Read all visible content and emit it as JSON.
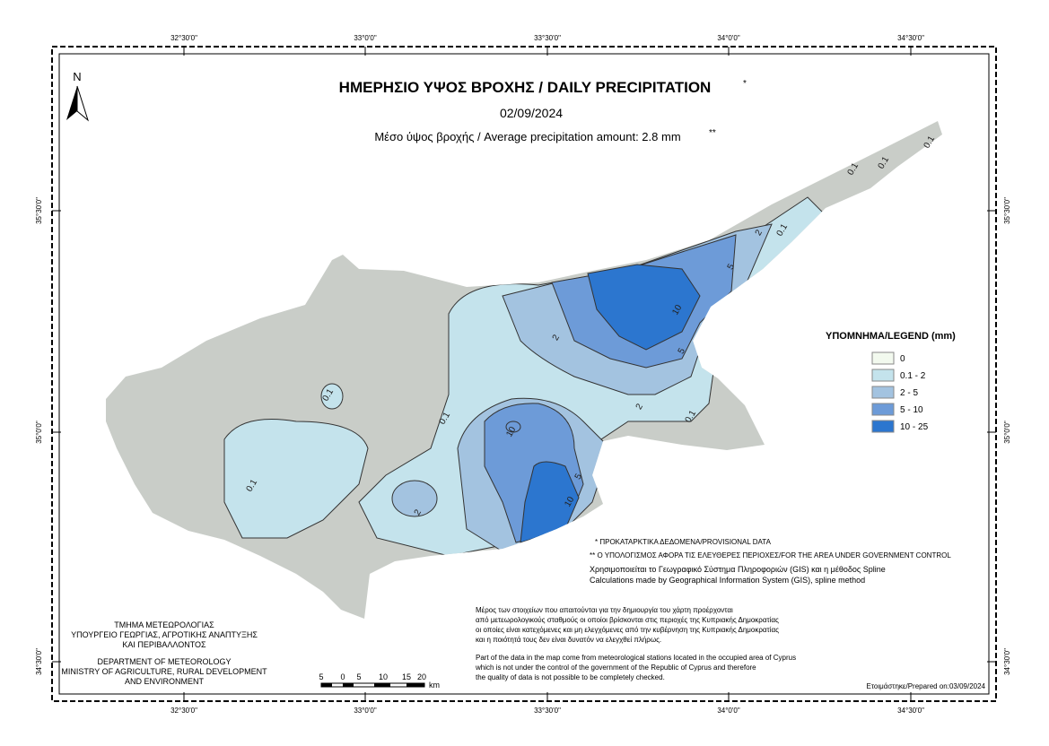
{
  "header": {
    "title": "ΗΜΕΡΗΣΙΟ ΥΨΟΣ ΒΡΟΧΗΣ / DAILY PRECIPITATION",
    "title_mark": "*",
    "date": "02/09/2024",
    "average": "Μέσο ύψος βροχής / Average precipitation amount: 2.8 mm",
    "average_mark": "**"
  },
  "north": "N",
  "coords": {
    "top": [
      "32°30'0\"",
      "33°0'0\"",
      "33°30'0\"",
      "34°0'0\"",
      "34°30'0\""
    ],
    "left": [
      "35°30'0\"",
      "35°0'0\"",
      "34°30'0\""
    ]
  },
  "legend": {
    "title": "ΥΠΟΜΝΗΜΑ/LEGEND (mm)",
    "items": [
      {
        "label": "0",
        "color": "#f2f9ee"
      },
      {
        "label": "0.1 - 2",
        "color": "#c4e3ec"
      },
      {
        "label": "2 - 5",
        "color": "#a3c3e0"
      },
      {
        "label": "5 - 10",
        "color": "#6d9bd8"
      },
      {
        "label": "10 - 25",
        "color": "#2c76cf"
      }
    ]
  },
  "contours": [
    "0.1",
    "0.1",
    "0.1",
    "0.1",
    "0.1",
    "0.1",
    "0.1",
    "0.1",
    "2",
    "2",
    "2",
    "2",
    "5",
    "5",
    "5",
    "10",
    "10",
    "10"
  ],
  "notes": {
    "provisional": "* ΠΡΟΚΑΤΑΡΚΤΙΚΑ ΔΕΔΟΜΕΝΑ/PROVISIONAL DATA",
    "area": "** Ο ΥΠΟΛΟΓΙΣΜΟΣ ΑΦΟΡΑ ΤΙΣ ΕΛΕΥΘΕΡΕΣ ΠΕΡΙΟΧΕΣ/FOR THE AREA UNDER GOVERNMENT CONTROL",
    "gis": [
      "Χρησιμοποιείται το Γεωγραφικό Σύστημα Πληροφοριών (GIS) και η μέθοδος Spline",
      "Calculations made by Geographical Information System (GIS), spline method"
    ],
    "disclaimer_gr": [
      "Μέρος των στοιχείων που απαιτούνται για την δημιουργία του χάρτη προέρχονται",
      "από μετεωρολογικούς σταθμούς οι οποίοι βρίσκονται στις περιοχές της Κυπριακής Δημοκρατίας",
      "οι οποίες είναι κατεχόμενες και μη ελεγχόμενες από την κυβέρνηση της Κυπριακής Δημοκρατίας",
      "και η ποιότητά τους δεν είναι δυνατόν να ελεγχθεί πλήρως."
    ],
    "disclaimer_en": [
      "Part of the data in the map come from meteorological stations located in the occupied area of Cyprus",
      "which is not under the control of the government of the Republic of Cyprus and therefore",
      "the quality of data is not possible to be completely checked."
    ],
    "prepared": "Ετοιμάστηκε/Prepared on:03/09/2024"
  },
  "department": [
    "ΤΜΗΜΑ ΜΕΤΕΩΡΟΛΟΓΙΑΣ",
    "ΥΠΟΥΡΓΕΙΟ ΓΕΩΡΓΙΑΣ, ΑΓΡΟΤΙΚΗΣ ΑΝΑΠΤΥΞΗΣ",
    "ΚΑΙ ΠΕΡΙΒΑΛΛΟΝΤΟΣ",
    "DEPARTMENT OF METEOROLOGY",
    "MINISTRY OF AGRICULTURE, RURAL DEVELOPMENT",
    "AND ENVIRONMENT"
  ],
  "scale_bar": [
    "5",
    "0",
    "5",
    "10",
    "15",
    "20",
    "km"
  ]
}
